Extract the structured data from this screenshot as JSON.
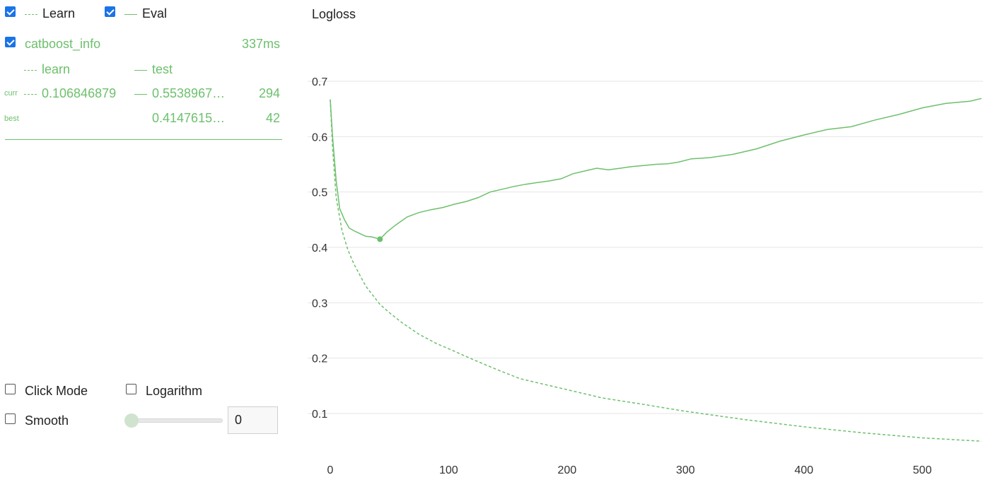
{
  "legend": {
    "learn_label": "Learn",
    "eval_label": "Eval",
    "learn_checked": true,
    "eval_checked": true
  },
  "run": {
    "name": "catboost_info",
    "time": "337ms",
    "checked": true,
    "col_learn": "learn",
    "col_test": "test",
    "curr_label": "curr",
    "curr_learn": "0.106846879",
    "curr_test": "0.5538967…",
    "curr_iter": "294",
    "best_label": "best",
    "best_test": "0.4147615…",
    "best_iter": "42"
  },
  "controls": {
    "click_mode_label": "Click Mode",
    "logarithm_label": "Logarithm",
    "smooth_label": "Smooth",
    "smooth_value": "0",
    "click_mode_checked": false,
    "logarithm_checked": false,
    "smooth_checked": false
  },
  "colors": {
    "accent": "#6dc06d",
    "checkbox": "#1a73e8",
    "grid": "#e6e6e6"
  },
  "chart_data": {
    "type": "line",
    "title": "Logloss",
    "xlabel": "",
    "ylabel": "",
    "xlim": [
      0,
      550
    ],
    "ylim": [
      0.05,
      0.72
    ],
    "xticks": [
      0,
      100,
      200,
      300,
      400,
      500
    ],
    "yticks": [
      0.1,
      0.2,
      0.3,
      0.4,
      0.5,
      0.6,
      0.7
    ],
    "grid": true,
    "best_point": {
      "x": 42,
      "y": 0.4147615
    },
    "series": [
      {
        "name": "learn",
        "style": "dashed",
        "x": [
          0,
          2,
          5,
          10,
          15,
          20,
          30,
          42,
          50,
          60,
          75,
          90,
          100,
          120,
          140,
          160,
          180,
          200,
          230,
          260,
          300,
          350,
          400,
          450,
          500,
          550
        ],
        "y": [
          0.667,
          0.58,
          0.49,
          0.43,
          0.395,
          0.37,
          0.33,
          0.297,
          0.282,
          0.265,
          0.243,
          0.226,
          0.217,
          0.198,
          0.18,
          0.163,
          0.153,
          0.143,
          0.128,
          0.118,
          0.104,
          0.089,
          0.076,
          0.065,
          0.056,
          0.05
        ]
      },
      {
        "name": "test",
        "style": "solid",
        "x": [
          0,
          2,
          5,
          8,
          12,
          16,
          20,
          25,
          30,
          35,
          42,
          48,
          55,
          65,
          75,
          85,
          95,
          105,
          115,
          125,
          135,
          145,
          155,
          165,
          175,
          185,
          195,
          205,
          215,
          225,
          235,
          245,
          255,
          265,
          275,
          285,
          294,
          305,
          320,
          340,
          360,
          380,
          400,
          420,
          440,
          460,
          480,
          500,
          520,
          540,
          550
        ],
        "y": [
          0.667,
          0.6,
          0.52,
          0.47,
          0.45,
          0.435,
          0.43,
          0.425,
          0.42,
          0.419,
          0.415,
          0.428,
          0.44,
          0.455,
          0.463,
          0.468,
          0.472,
          0.478,
          0.483,
          0.49,
          0.5,
          0.505,
          0.51,
          0.514,
          0.517,
          0.52,
          0.524,
          0.533,
          0.538,
          0.543,
          0.54,
          0.543,
          0.546,
          0.548,
          0.55,
          0.551,
          0.554,
          0.56,
          0.562,
          0.568,
          0.578,
          0.592,
          0.603,
          0.613,
          0.618,
          0.63,
          0.64,
          0.652,
          0.66,
          0.664,
          0.669
        ]
      }
    ]
  }
}
